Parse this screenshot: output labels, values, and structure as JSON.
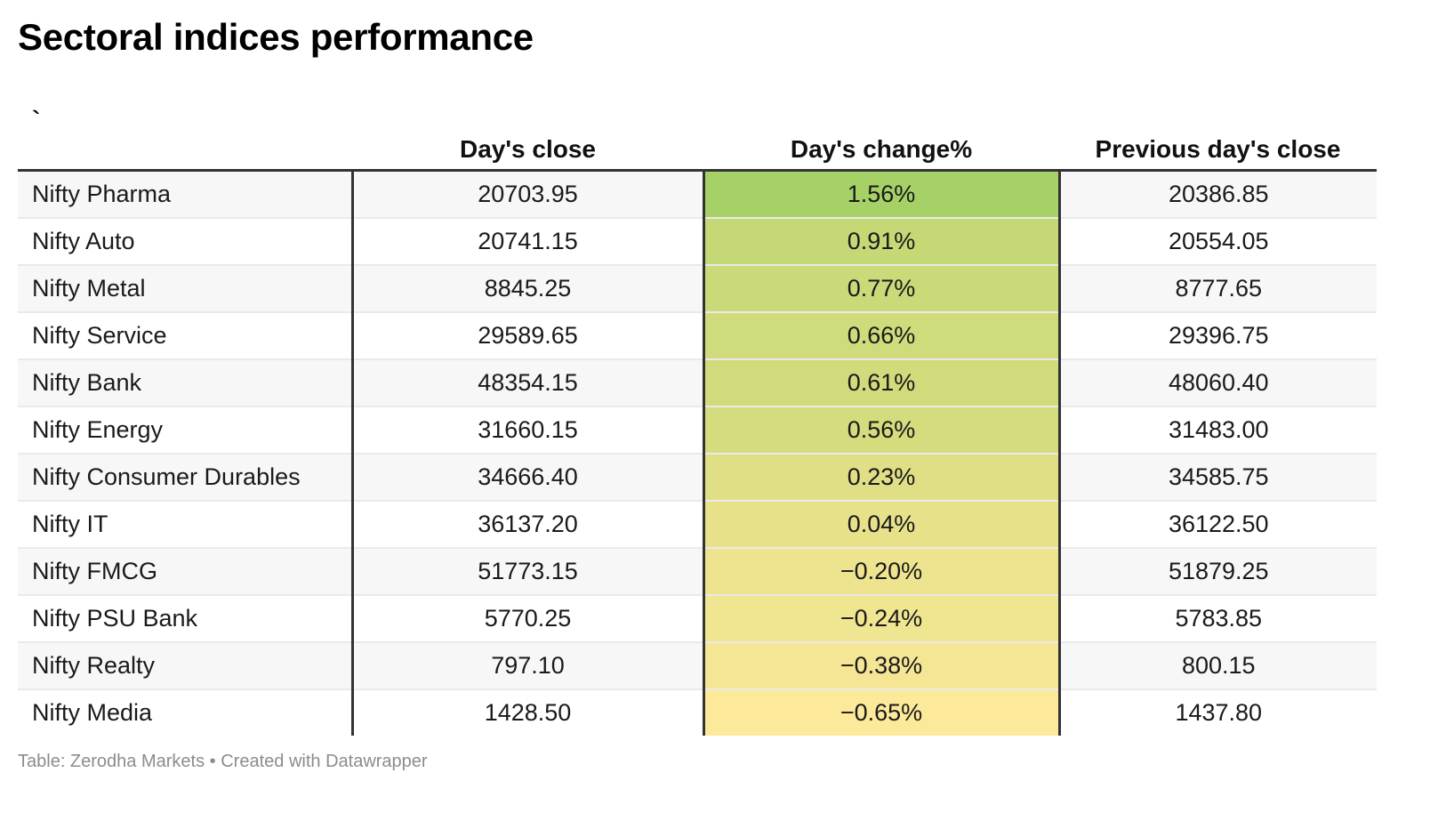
{
  "title": "Sectoral indices performance",
  "footer": {
    "source": "Table: Zerodha Markets",
    "separator": " • ",
    "credit": "Created with Datawrapper"
  },
  "colors": {
    "heat_high": "#a6d167",
    "heat_mid": "#d9dd80",
    "heat_low": "#fde99a",
    "rule": "#333333",
    "stripe": "#f7f7f7",
    "footer_text": "#8c8c8c"
  },
  "chart_data": {
    "type": "table",
    "title": "Sectoral indices performance",
    "columns": [
      "`",
      "Day's close",
      "Day's change%",
      "Previous day's close"
    ],
    "rows": [
      {
        "name": "Nifty Pharma",
        "close": "20703.95",
        "change": "1.56%",
        "change_value": 1.56,
        "prev": "20386.85"
      },
      {
        "name": "Nifty Auto",
        "close": "20741.15",
        "change": "0.91%",
        "change_value": 0.91,
        "prev": "20554.05"
      },
      {
        "name": "Nifty Metal",
        "close": "8845.25",
        "change": "0.77%",
        "change_value": 0.77,
        "prev": "8777.65"
      },
      {
        "name": "Nifty Service",
        "close": "29589.65",
        "change": "0.66%",
        "change_value": 0.66,
        "prev": "29396.75"
      },
      {
        "name": "Nifty Bank",
        "close": "48354.15",
        "change": "0.61%",
        "change_value": 0.61,
        "prev": "48060.40"
      },
      {
        "name": "Nifty Energy",
        "close": "31660.15",
        "change": "0.56%",
        "change_value": 0.56,
        "prev": "31483.00"
      },
      {
        "name": "Nifty Consumer Durables",
        "close": "34666.40",
        "change": "0.23%",
        "change_value": 0.23,
        "prev": "34585.75"
      },
      {
        "name": "Nifty IT",
        "close": "36137.20",
        "change": "0.04%",
        "change_value": 0.04,
        "prev": "36122.50"
      },
      {
        "name": "Nifty FMCG",
        "close": "51773.15",
        "change": "−0.20%",
        "change_value": -0.2,
        "prev": "51879.25"
      },
      {
        "name": "Nifty PSU Bank",
        "close": "5770.25",
        "change": "−0.24%",
        "change_value": -0.24,
        "prev": "5783.85"
      },
      {
        "name": "Nifty Realty",
        "close": "797.10",
        "change": "−0.38%",
        "change_value": -0.38,
        "prev": "800.15"
      },
      {
        "name": "Nifty Media",
        "close": "1428.50",
        "change": "−0.65%",
        "change_value": -0.65,
        "prev": "1437.80"
      }
    ]
  }
}
